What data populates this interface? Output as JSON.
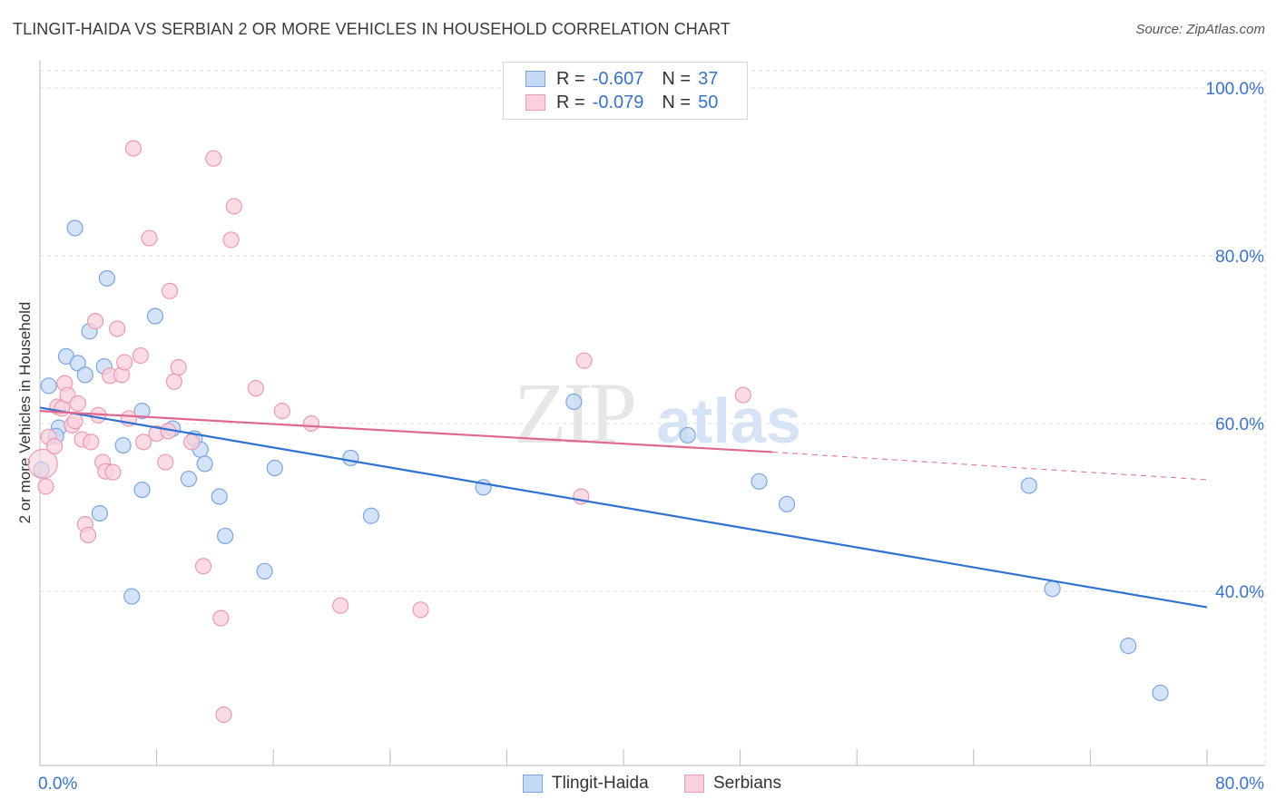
{
  "title": "TLINGIT-HAIDA VS SERBIAN 2 OR MORE VEHICLES IN HOUSEHOLD CORRELATION CHART",
  "source": "Source: ZipAtlas.com",
  "legend": {
    "rows": [
      {
        "r_label": "R =",
        "r_value": "-0.607",
        "n_label": "N =",
        "n_value": "37"
      },
      {
        "r_label": "R =",
        "r_value": "-0.079",
        "n_label": "N =",
        "n_value": "50"
      }
    ]
  },
  "bottom_legend": [
    "Tlingit-Haida",
    "Serbians"
  ],
  "watermark": {
    "zip": "ZIP",
    "atlas": "atlas"
  },
  "colors": {
    "blue_fill": "#c5d9f5",
    "blue_stroke": "#7aa6e0",
    "blue_line": "#2e72d2",
    "pink_fill": "#f9d0dc",
    "pink_stroke": "#ec9ab2",
    "pink_line": "#e0688f",
    "grid": "#dddddd",
    "axis_text": "#3b73c9"
  },
  "chart_data": {
    "type": "scatter",
    "title": "TLINGIT-HAIDA VS SERBIAN 2 OR MORE VEHICLES IN HOUSEHOLD CORRELATION CHART",
    "xlabel": "",
    "ylabel": "2 or more Vehicles in Household",
    "xlim": [
      0,
      80
    ],
    "ylim": [
      20,
      102
    ],
    "x_tick_labels": [
      "0.0%",
      "80.0%"
    ],
    "y_ticks": [
      40,
      60,
      80,
      100
    ],
    "y_tick_labels": [
      "40.0%",
      "60.0%",
      "80.0%",
      "100.0%"
    ],
    "series": [
      {
        "name": "Tlingit-Haida",
        "color": "blue",
        "points": [
          [
            0.1,
            54.5
          ],
          [
            0.6,
            64.5
          ],
          [
            1.3,
            59.5
          ],
          [
            1.1,
            58.5
          ],
          [
            1.8,
            68.0
          ],
          [
            2.4,
            83.3
          ],
          [
            2.6,
            67.2
          ],
          [
            3.1,
            65.8
          ],
          [
            3.4,
            71.0
          ],
          [
            4.1,
            49.3
          ],
          [
            4.4,
            66.8
          ],
          [
            4.6,
            77.3
          ],
          [
            5.7,
            57.4
          ],
          [
            6.3,
            39.4
          ],
          [
            7.0,
            61.5
          ],
          [
            7.0,
            52.1
          ],
          [
            7.9,
            72.8
          ],
          [
            9.1,
            59.4
          ],
          [
            10.2,
            53.4
          ],
          [
            10.6,
            58.2
          ],
          [
            11.0,
            56.9
          ],
          [
            11.3,
            55.2
          ],
          [
            12.3,
            51.3
          ],
          [
            12.7,
            46.6
          ],
          [
            15.4,
            42.4
          ],
          [
            16.1,
            54.7
          ],
          [
            21.3,
            55.9
          ],
          [
            22.7,
            49.0
          ],
          [
            30.4,
            52.4
          ],
          [
            36.6,
            62.6
          ],
          [
            44.4,
            58.6
          ],
          [
            49.3,
            53.1
          ],
          [
            51.2,
            50.4
          ],
          [
            67.8,
            52.6
          ],
          [
            69.4,
            40.3
          ],
          [
            74.6,
            33.5
          ],
          [
            76.8,
            27.9
          ]
        ]
      },
      {
        "name": "Serbians",
        "color": "pink",
        "points": [
          [
            0.2,
            55.2
          ],
          [
            0.4,
            52.5
          ],
          [
            0.6,
            58.4
          ],
          [
            1.0,
            57.3
          ],
          [
            1.2,
            62.0
          ],
          [
            1.5,
            61.8
          ],
          [
            1.7,
            64.8
          ],
          [
            1.9,
            63.4
          ],
          [
            2.2,
            59.8
          ],
          [
            2.4,
            60.3
          ],
          [
            2.6,
            62.4
          ],
          [
            2.9,
            58.1
          ],
          [
            3.1,
            48.0
          ],
          [
            3.3,
            46.7
          ],
          [
            3.5,
            57.8
          ],
          [
            3.8,
            72.2
          ],
          [
            4.0,
            61.0
          ],
          [
            4.3,
            55.4
          ],
          [
            4.5,
            54.3
          ],
          [
            4.8,
            65.7
          ],
          [
            5.0,
            54.2
          ],
          [
            5.3,
            71.3
          ],
          [
            5.6,
            65.8
          ],
          [
            5.8,
            67.3
          ],
          [
            6.1,
            60.6
          ],
          [
            6.4,
            92.8
          ],
          [
            6.9,
            68.1
          ],
          [
            7.1,
            57.8
          ],
          [
            7.5,
            82.1
          ],
          [
            8.0,
            58.8
          ],
          [
            8.6,
            55.4
          ],
          [
            8.8,
            59.1
          ],
          [
            8.9,
            75.8
          ],
          [
            9.2,
            65.0
          ],
          [
            9.5,
            66.7
          ],
          [
            10.4,
            57.8
          ],
          [
            11.2,
            43.0
          ],
          [
            11.9,
            91.6
          ],
          [
            12.4,
            36.8
          ],
          [
            12.6,
            25.3
          ],
          [
            13.1,
            81.9
          ],
          [
            13.3,
            85.9
          ],
          [
            14.8,
            64.2
          ],
          [
            16.6,
            61.5
          ],
          [
            18.6,
            60.0
          ],
          [
            20.6,
            38.3
          ],
          [
            26.1,
            37.8
          ],
          [
            37.1,
            51.3
          ],
          [
            37.3,
            67.5
          ],
          [
            48.2,
            63.4
          ]
        ]
      }
    ],
    "trendlines": [
      {
        "series": "Tlingit-Haida",
        "x": [
          0,
          80
        ],
        "y": [
          61.9,
          38.1
        ],
        "style": "solid"
      },
      {
        "series": "Serbians",
        "x": [
          0,
          50.2
        ],
        "y": [
          61.5,
          56.6
        ],
        "style": "solid"
      },
      {
        "series": "Serbians",
        "x": [
          50.2,
          80
        ],
        "y": [
          56.6,
          53.3
        ],
        "style": "dashed"
      }
    ]
  }
}
